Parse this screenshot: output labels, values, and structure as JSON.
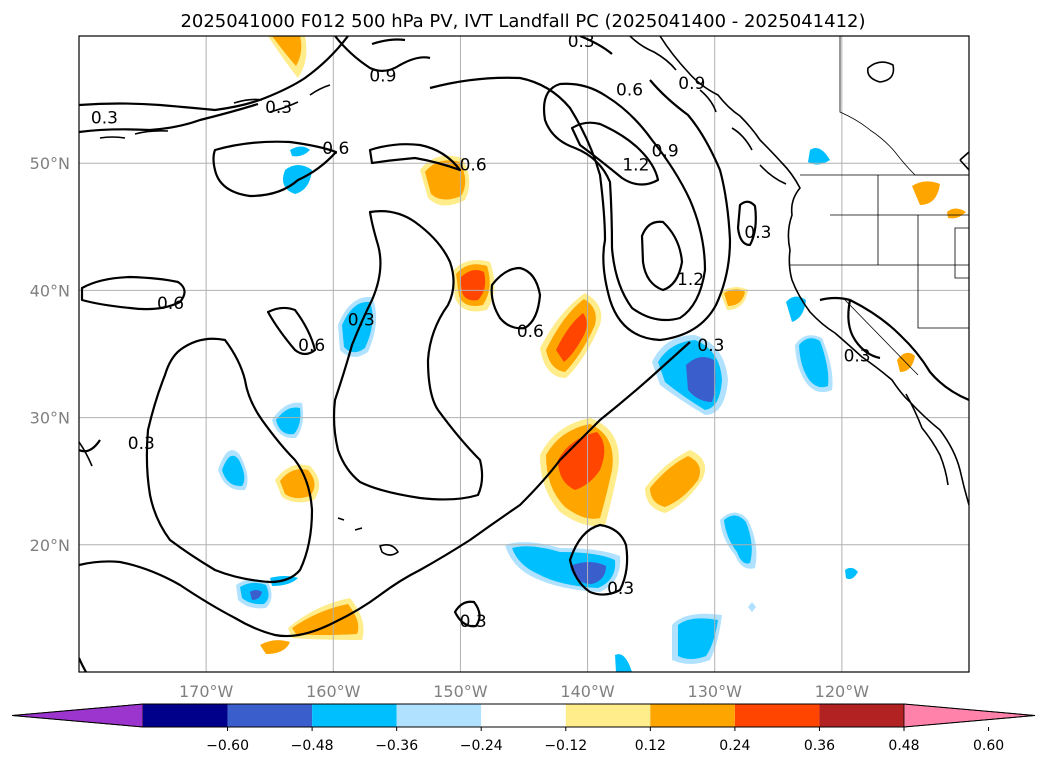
{
  "title": "2025041000 F012 500 hPa PV, IVT Landfall PC (2025041400 - 2025041412)",
  "map": {
    "lon_range": [
      -180,
      -110
    ],
    "lat_range": [
      10,
      60
    ],
    "x_ticks": [
      {
        "lon": -170,
        "label": "170°W"
      },
      {
        "lon": -160,
        "label": "160°W"
      },
      {
        "lon": -150,
        "label": "150°W"
      },
      {
        "lon": -140,
        "label": "140°W"
      },
      {
        "lon": -130,
        "label": "130°W"
      },
      {
        "lon": -120,
        "label": "120°W"
      }
    ],
    "y_ticks": [
      {
        "lat": 50,
        "label": "50°N"
      },
      {
        "lat": 40,
        "label": "40°N"
      },
      {
        "lat": 30,
        "label": "30°N"
      },
      {
        "lat": 20,
        "label": "20°N"
      }
    ],
    "gridlines": true,
    "contour_levels": [
      "0.3",
      "0.6",
      "0.9",
      "1.2"
    ],
    "contour_labels": [
      {
        "text": "0.3",
        "lon": -140.5,
        "lat": 59.6
      },
      {
        "text": "0.9",
        "lon": -156.1,
        "lat": 56.9
      },
      {
        "text": "0.3",
        "lon": -178.0,
        "lat": 53.6
      },
      {
        "text": "0.3",
        "lon": -164.3,
        "lat": 54.4
      },
      {
        "text": "0.6",
        "lon": -159.8,
        "lat": 51.2
      },
      {
        "text": "0.6",
        "lon": -149.0,
        "lat": 49.9
      },
      {
        "text": "0.6",
        "lon": -136.7,
        "lat": 55.8
      },
      {
        "text": "0.9",
        "lon": -131.8,
        "lat": 56.3
      },
      {
        "text": "0.9",
        "lon": -133.9,
        "lat": 51.0
      },
      {
        "text": "1.2",
        "lon": -136.2,
        "lat": 49.9
      },
      {
        "text": "0.3",
        "lon": -126.6,
        "lat": 44.6
      },
      {
        "text": "1.2",
        "lon": -131.9,
        "lat": 40.9
      },
      {
        "text": "0.6",
        "lon": -172.8,
        "lat": 39.0
      },
      {
        "text": "0.3",
        "lon": -157.8,
        "lat": 37.7
      },
      {
        "text": "0.6",
        "lon": -161.7,
        "lat": 35.7
      },
      {
        "text": "0.6",
        "lon": -144.5,
        "lat": 36.8
      },
      {
        "text": "0.3",
        "lon": -130.3,
        "lat": 35.7
      },
      {
        "text": "0.3",
        "lon": -118.8,
        "lat": 34.9
      },
      {
        "text": "0.3",
        "lon": -175.1,
        "lat": 28.0
      },
      {
        "text": "0.3",
        "lon": -137.4,
        "lat": 16.6
      },
      {
        "text": "0.3",
        "lon": -149.0,
        "lat": 14.0
      }
    ]
  },
  "colorbar": {
    "colors": [
      "#9b35cd",
      "#00008b",
      "#3a5fcd",
      "#00bfff",
      "#b0e2ff",
      "#ffffff",
      "#ffec8b",
      "#ffa500",
      "#ff4500",
      "#b22222",
      "#ff82ab"
    ],
    "tick_labels": [
      "−0.60",
      "−0.48",
      "−0.36",
      "−0.24",
      "−0.12",
      "0.12",
      "0.24",
      "0.36",
      "0.48",
      "0.60"
    ],
    "extend": "both"
  }
}
